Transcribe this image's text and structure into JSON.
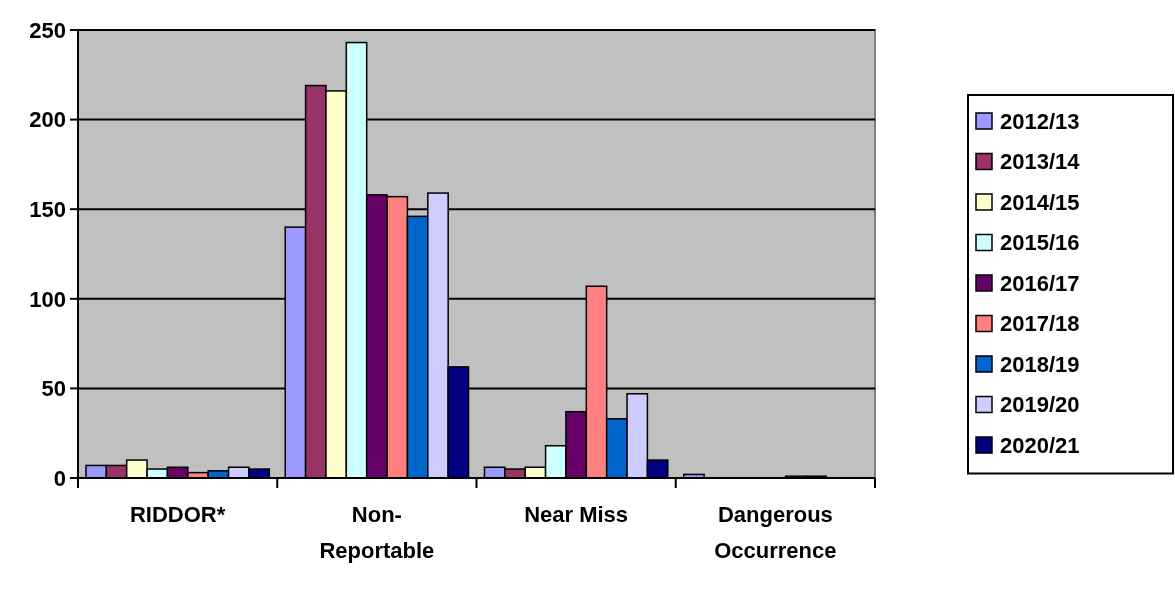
{
  "chart_data": {
    "type": "bar",
    "categories": [
      "RIDDOR*",
      "Non-Reportable",
      "Near Miss",
      "Dangerous Occurrence"
    ],
    "series": [
      {
        "name": "2012/13",
        "color": "#9999ff",
        "values": [
          7,
          140,
          6,
          2
        ]
      },
      {
        "name": "2013/14",
        "color": "#993366",
        "values": [
          7,
          219,
          5,
          0
        ]
      },
      {
        "name": "2014/15",
        "color": "#ffffcc",
        "values": [
          10,
          216,
          6,
          0
        ]
      },
      {
        "name": "2015/16",
        "color": "#ccffff",
        "values": [
          5,
          243,
          18,
          0
        ]
      },
      {
        "name": "2016/17",
        "color": "#660066",
        "values": [
          6,
          158,
          37,
          0
        ]
      },
      {
        "name": "2017/18",
        "color": "#ff8080",
        "values": [
          3,
          157,
          107,
          1
        ]
      },
      {
        "name": "2018/19",
        "color": "#0066cc",
        "values": [
          4,
          146,
          33,
          1
        ]
      },
      {
        "name": "2019/20",
        "color": "#ccccff",
        "values": [
          6,
          159,
          47,
          0
        ]
      },
      {
        "name": "2020/21",
        "color": "#000080",
        "values": [
          5,
          62,
          10,
          0
        ]
      }
    ],
    "ylim": [
      0,
      250
    ],
    "yticks": [
      0,
      50,
      100,
      150,
      200,
      250
    ],
    "grid": "y",
    "legend": "right"
  }
}
